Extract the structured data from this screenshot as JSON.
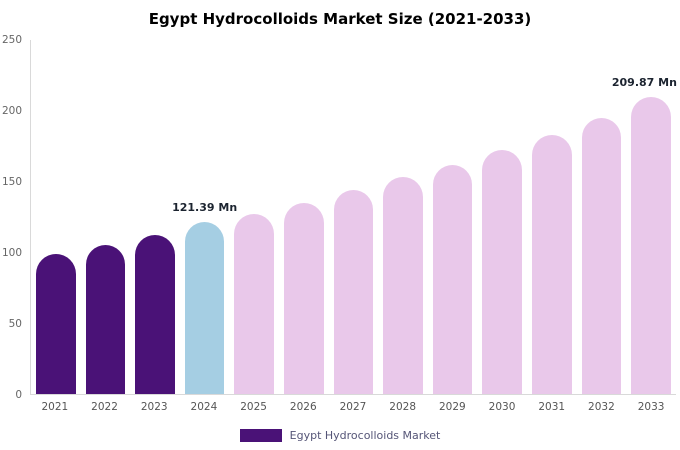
{
  "title": "Egypt Hydrocolloids Market Size (2021-2033)",
  "legend": {
    "label": "Egypt Hydrocolloids Market",
    "swatch_color": "#4a1277"
  },
  "colors": {
    "dark_purple": "#4a1277",
    "highlight_blue": "#a5cee3",
    "light_pink": "#e9c8ea",
    "axis_line": "#d9d9d9"
  },
  "chart_data": {
    "type": "bar",
    "title": "Egypt Hydrocolloids Market Size (2021-2033)",
    "xlabel": "",
    "ylabel": "",
    "categories": [
      "2021",
      "2022",
      "2023",
      "2024",
      "2025",
      "2026",
      "2027",
      "2028",
      "2029",
      "2030",
      "2031",
      "2032",
      "2033"
    ],
    "values": [
      99,
      105,
      112,
      121.39,
      127,
      135,
      144,
      153,
      162,
      172,
      183,
      195,
      209.87
    ],
    "ylim": [
      0,
      250
    ],
    "yticks": [
      0,
      50,
      100,
      150,
      200,
      250
    ],
    "grid": false,
    "legend_position": "bottom",
    "bar_colors": [
      "#4a1277",
      "#4a1277",
      "#4a1277",
      "#a5cee3",
      "#e9c8ea",
      "#e9c8ea",
      "#e9c8ea",
      "#e9c8ea",
      "#e9c8ea",
      "#e9c8ea",
      "#e9c8ea",
      "#e9c8ea",
      "#e9c8ea"
    ],
    "annotations": [
      {
        "category": "2024",
        "text": "121.39 Mn"
      },
      {
        "category": "2033",
        "text": "209.87 Mn"
      }
    ]
  }
}
